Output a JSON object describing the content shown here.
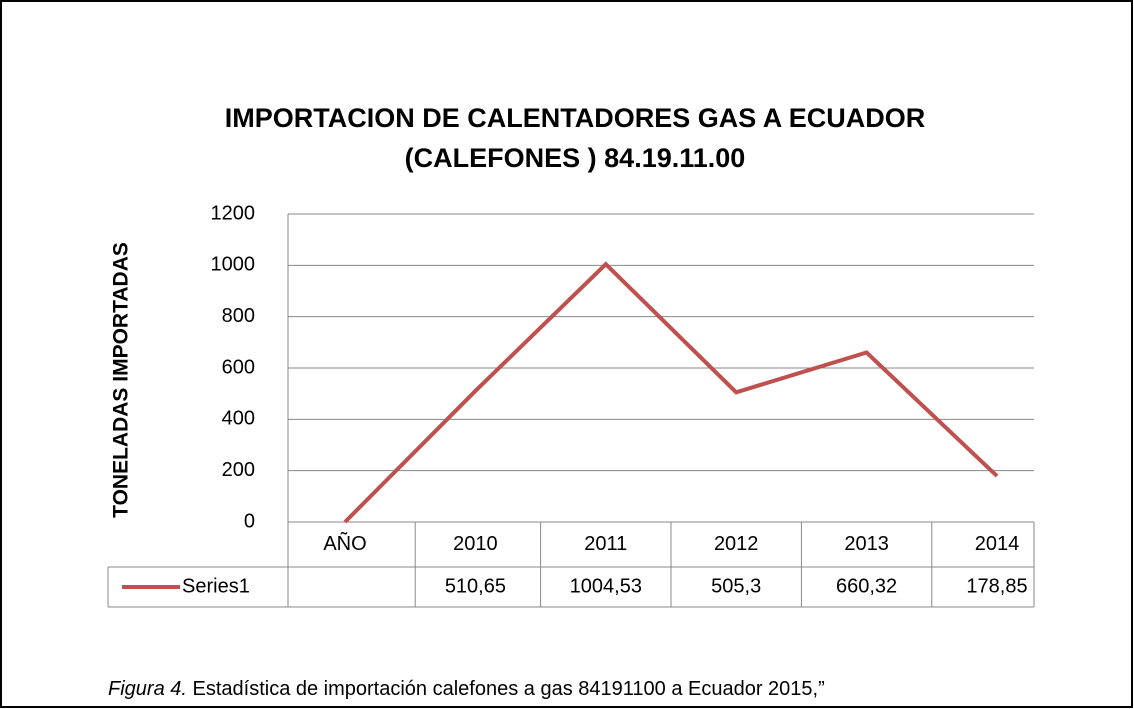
{
  "chart_data": {
    "type": "line",
    "title": [
      "IMPORTACION DE CALENTADORES GAS A ECUADOR",
      "(CALEFONES )  84.19.11.00"
    ],
    "y_label": "TONELADAS IMPORTADAS",
    "categories": [
      "AÑO",
      "2010",
      "2011",
      "2012",
      "2013",
      "2014"
    ],
    "series": [
      {
        "name": "Series1",
        "color": "#c0504d",
        "values": [
          0,
          510.65,
          1004.53,
          505.3,
          660.32,
          178.85
        ],
        "value_labels": [
          null,
          "510,65",
          "1004,53",
          "505,3",
          "660,32",
          "178,85"
        ]
      }
    ],
    "ylim": [
      0,
      1200
    ],
    "yticks": [
      0,
      200,
      400,
      600,
      800,
      1000,
      1200
    ],
    "grid": true,
    "data_table": true
  },
  "caption": {
    "label": "Figura 4.",
    "text": " Estadística de importación calefones a gas 84191100 a Ecuador  2015,”"
  }
}
